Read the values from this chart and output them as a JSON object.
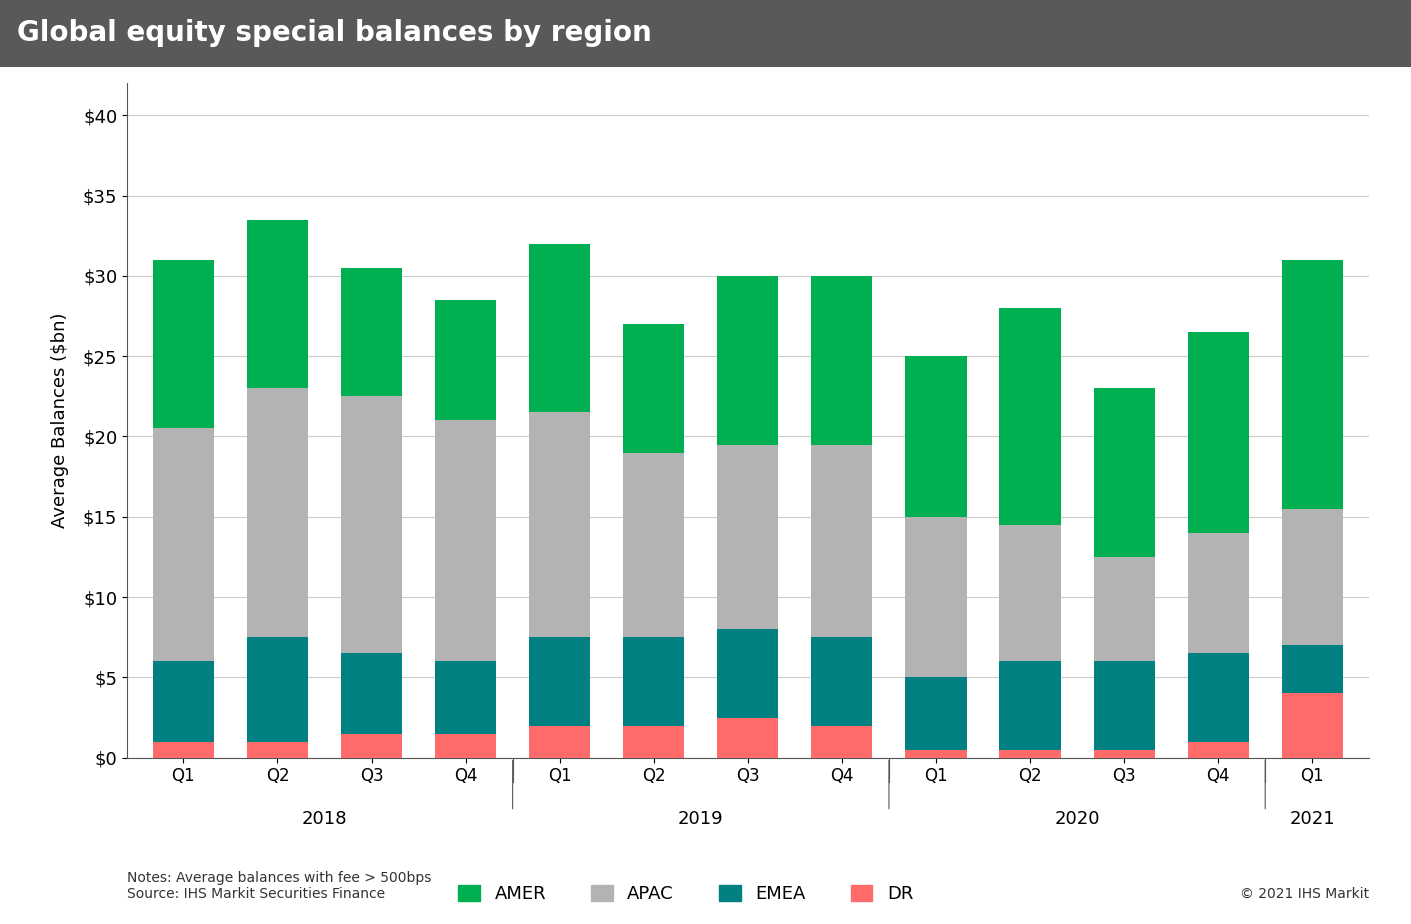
{
  "title": "Global equity special balances by region",
  "ylabel": "Average Balances ($bn)",
  "yticks": [
    0,
    5,
    10,
    15,
    20,
    25,
    30,
    35,
    40
  ],
  "ytick_labels": [
    "$0",
    "$5",
    "$10",
    "$15",
    "$20",
    "$25",
    "$30",
    "$35",
    "$40"
  ],
  "ylim": [
    0,
    42
  ],
  "categories": [
    "Q1",
    "Q2",
    "Q3",
    "Q4",
    "Q1",
    "Q2",
    "Q3",
    "Q4",
    "Q1",
    "Q2",
    "Q3",
    "Q4",
    "Q1"
  ],
  "year_groups": [
    {
      "year": "2018",
      "start": 0,
      "end": 3
    },
    {
      "year": "2019",
      "start": 4,
      "end": 7
    },
    {
      "year": "2020",
      "start": 8,
      "end": 11
    },
    {
      "year": "2021",
      "start": 12,
      "end": 12
    }
  ],
  "DR": [
    1.0,
    1.0,
    1.5,
    1.5,
    2.0,
    2.0,
    2.5,
    2.0,
    0.5,
    0.5,
    0.5,
    1.0,
    4.0
  ],
  "EMEA": [
    5.0,
    6.5,
    5.0,
    4.5,
    5.5,
    5.5,
    5.5,
    5.5,
    4.5,
    5.5,
    5.5,
    5.5,
    3.0
  ],
  "APAC": [
    14.5,
    15.5,
    16.0,
    15.0,
    14.0,
    11.5,
    11.5,
    12.0,
    10.0,
    8.5,
    6.5,
    7.5,
    8.5
  ],
  "AMER": [
    10.5,
    10.5,
    8.0,
    7.5,
    10.5,
    8.0,
    10.5,
    10.5,
    10.0,
    13.5,
    10.5,
    12.5,
    15.5
  ],
  "colors": {
    "AMER": "#00b050",
    "APAC": "#b3b3b3",
    "EMEA": "#008080",
    "DR": "#ff6b6b"
  },
  "title_bg_color": "#595959",
  "title_text_color": "#ffffff",
  "bg_color": "#ffffff",
  "grid_color": "#cccccc",
  "notes": "Notes: Average balances with fee > 500bps\nSource: IHS Markit Securities Finance",
  "copyright": "© 2021 IHS Markit",
  "bar_width": 0.65
}
